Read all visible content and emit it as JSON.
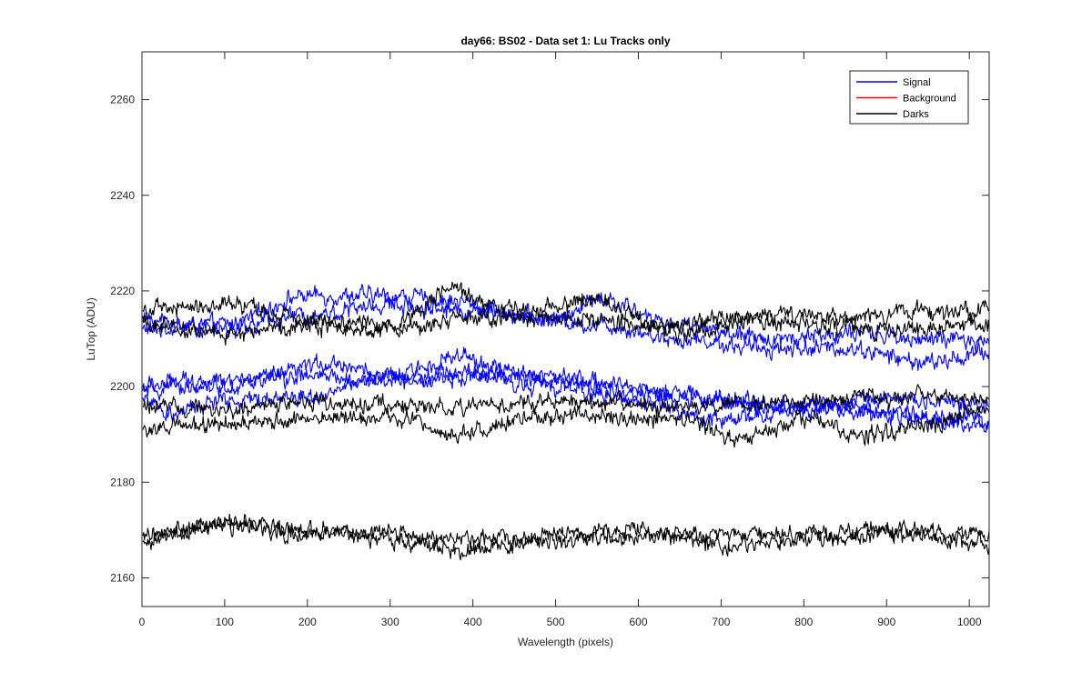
{
  "chart_data": {
    "type": "line",
    "title": "day66: BS02 - Data set 1: Lu Tracks only",
    "xlabel": "Wavelength (pixels)",
    "ylabel": "LuTop (ADU)",
    "xlim": [
      0,
      1024
    ],
    "ylim": [
      2154,
      2270
    ],
    "xticks": [
      0,
      100,
      200,
      300,
      400,
      500,
      600,
      700,
      800,
      900,
      1000
    ],
    "yticks": [
      2160,
      2180,
      2200,
      2220,
      2240,
      2260
    ],
    "grid": false,
    "legend_position": "top-right",
    "legend": [
      {
        "name": "Signal",
        "color": "#0000ff"
      },
      {
        "name": "Background",
        "color": "#ff0000"
      },
      {
        "name": "Darks",
        "color": "#000000"
      }
    ],
    "x_range": [
      1,
      1024
    ],
    "noise_amplitude_adu": 1.6,
    "series": [
      {
        "group": "Signal",
        "color": "#0000ff",
        "x": [
          0,
          100,
          200,
          300,
          370,
          450,
          550,
          650,
          750,
          850,
          950,
          1024
        ],
        "y": [
          2212,
          2213,
          2219,
          2219,
          2218,
          2215,
          2213,
          2210,
          2208,
          2208,
          2205,
          2207
        ]
      },
      {
        "group": "Signal",
        "color": "#0000ff",
        "x": [
          0,
          100,
          200,
          300,
          400,
          500,
          550,
          650,
          750,
          850,
          950,
          1024
        ],
        "y": [
          2214,
          2212,
          2215,
          2217,
          2216,
          2214,
          2218,
          2213,
          2210,
          2211,
          2210,
          2209
        ]
      },
      {
        "group": "Signal",
        "color": "#0000ff",
        "x": [
          0,
          50,
          100,
          150,
          230,
          300,
          380,
          450,
          550,
          650,
          750,
          850,
          950,
          1024
        ],
        "y": [
          2200,
          2201,
          2200,
          2202,
          2205,
          2202,
          2206,
          2203,
          2201,
          2198,
          2196,
          2196,
          2193,
          2192
        ]
      },
      {
        "group": "Signal",
        "color": "#0000ff",
        "x": [
          0,
          100,
          200,
          300,
          400,
          500,
          600,
          700,
          800,
          900,
          1024
        ],
        "y": [
          2199,
          2201,
          2202,
          2201,
          2203,
          2201,
          2199,
          2197,
          2196,
          2194,
          2193
        ]
      },
      {
        "group": "Signal",
        "color": "#0000ff",
        "x": [
          0,
          30,
          100,
          200,
          300,
          400,
          500,
          600,
          700,
          800,
          900,
          1024
        ],
        "y": [
          2198,
          2194,
          2197,
          2198,
          2202,
          2202,
          2200,
          2197,
          2193,
          2195,
          2198,
          2196
        ]
      },
      {
        "group": "Darks",
        "color": "#000000",
        "x": [
          0,
          100,
          200,
          300,
          370,
          450,
          550,
          650,
          750,
          850,
          950,
          1024
        ],
        "y": [
          2216,
          2217,
          2214,
          2213,
          2220,
          2216,
          2218,
          2211,
          2215,
          2214,
          2216,
          2216
        ]
      },
      {
        "group": "Darks",
        "color": "#000000",
        "x": [
          0,
          100,
          200,
          300,
          400,
          500,
          600,
          700,
          800,
          900,
          1024
        ],
        "y": [
          2213,
          2211,
          2213,
          2212,
          2214,
          2214,
          2213,
          2214,
          2213,
          2212,
          2213
        ]
      },
      {
        "group": "Darks",
        "color": "#000000",
        "x": [
          0,
          100,
          200,
          300,
          400,
          500,
          600,
          700,
          800,
          900,
          1024
        ],
        "y": [
          2196,
          2195,
          2197,
          2196,
          2196,
          2197,
          2196,
          2196,
          2197,
          2198,
          2197
        ]
      },
      {
        "group": "Darks",
        "color": "#000000",
        "x": [
          0,
          100,
          200,
          300,
          380,
          450,
          550,
          650,
          730,
          800,
          870,
          950,
          1024
        ],
        "y": [
          2191,
          2192,
          2193,
          2194,
          2190,
          2193,
          2194,
          2193,
          2189,
          2193,
          2190,
          2192,
          2195
        ]
      },
      {
        "group": "Darks",
        "color": "#000000",
        "x": [
          0,
          100,
          200,
          300,
          400,
          500,
          600,
          700,
          800,
          900,
          1024
        ],
        "y": [
          2168,
          2171,
          2169,
          2169,
          2168,
          2168,
          2169,
          2169,
          2169,
          2170,
          2169
        ]
      },
      {
        "group": "Darks",
        "color": "#000000",
        "x": [
          0,
          100,
          200,
          300,
          400,
          500,
          600,
          700,
          800,
          900,
          1024
        ],
        "y": [
          2169,
          2171,
          2170,
          2168,
          2166,
          2169,
          2170,
          2167,
          2168,
          2169,
          2167
        ]
      }
    ]
  }
}
